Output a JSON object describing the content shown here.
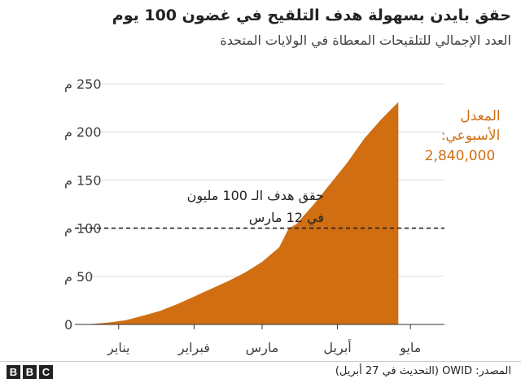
{
  "header": {
    "title": "حقق بايدن بسهولة هدف التلقيح في غضون 100 يوم",
    "subtitle": "العدد الإجمالي للتلقيحات المعطاة في الولايات المتحدة"
  },
  "chart_data": {
    "type": "area",
    "title": "حقق بايدن بسهولة هدف التلقيح في غضون 100 يوم",
    "subtitle": "العدد الإجمالي للتلقيحات المعطاة في الولايات المتحدة",
    "ylim": [
      0,
      250
    ],
    "y_ticks": [
      0,
      50,
      100,
      150,
      200,
      250
    ],
    "y_tick_labels": [
      "0",
      "50 م",
      "100 م",
      "150 م",
      "200 م",
      "250 م"
    ],
    "x_tick_labels": [
      "يناير",
      "فبراير",
      "مارس",
      "أبريل",
      "مايو"
    ],
    "x_tick_dates": [
      "2021-01-01",
      "2021-02-01",
      "2021-03-01",
      "2021-04-01",
      "2021-05-01"
    ],
    "xlim": [
      "2020-12-14",
      "2021-05-15"
    ],
    "grid": true,
    "color": "#d06e11",
    "series": [
      {
        "x": [
          "2020-12-14",
          "2020-12-21",
          "2020-12-28",
          "2021-01-04",
          "2021-01-11",
          "2021-01-18",
          "2021-01-25",
          "2021-02-01",
          "2021-02-08",
          "2021-02-15",
          "2021-02-22",
          "2021-03-01",
          "2021-03-08",
          "2021-03-12",
          "2021-03-15",
          "2021-03-22",
          "2021-03-29",
          "2021-04-05",
          "2021-04-12",
          "2021-04-19",
          "2021-04-26"
        ],
        "values": [
          0,
          0.5,
          2,
          4.5,
          9,
          14,
          21,
          29,
          37,
          45,
          54,
          65,
          80,
          100,
          104,
          124,
          146,
          168,
          193,
          213,
          231
        ]
      }
    ],
    "reference_line": {
      "y": 100,
      "style": "dashed",
      "label_lines": [
        "حقق هدف الـ 100 مليون",
        "في 12 مارس"
      ]
    },
    "annotation": {
      "lines": [
        "المعدل",
        "الأسبوعي:",
        "2,840,000"
      ]
    }
  },
  "footer": {
    "source": "المصدر: OWID (التحديث في 27 أبريل)",
    "logo": [
      "B",
      "B",
      "C"
    ]
  }
}
